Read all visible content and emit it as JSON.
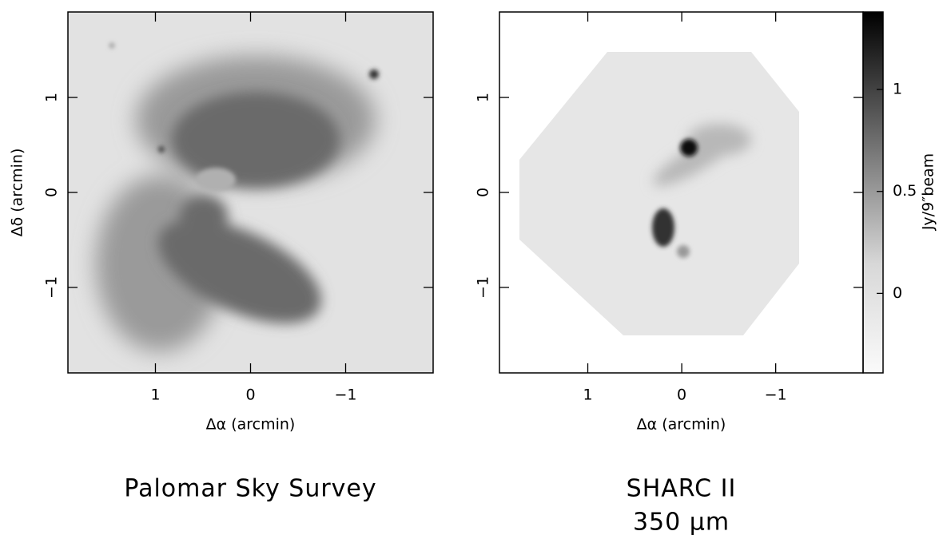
{
  "chart_data": [
    {
      "type": "image",
      "title_lines": [
        "Palomar Sky Survey"
      ],
      "xlabel": "Δα (arcmin)",
      "ylabel": "Δδ (arcmin)",
      "xlim": [
        1.92,
        -1.92
      ],
      "ylim": [
        -1.9,
        1.9
      ],
      "xticks": [
        1,
        0,
        {
          "value": -1,
          "label": "−1"
        }
      ],
      "yticks": [
        {
          "value": -1,
          "label": "−1"
        },
        0,
        1
      ]
    },
    {
      "type": "image",
      "title_lines": [
        "SHARC II",
        "350 μm"
      ],
      "xlabel": "Δα (arcmin)",
      "xlim": [
        1.94,
        -1.93
      ],
      "ylim": [
        -1.9,
        1.9
      ],
      "xticks": [
        1,
        0,
        {
          "value": -1,
          "label": "−1"
        }
      ],
      "yticks": [
        {
          "value": -1,
          "label": "−1"
        },
        0,
        1
      ],
      "colorbar": {
        "label": "Jy/9″beam",
        "lim": [
          -0.39,
          1.38
        ],
        "ticks": [
          0,
          0.5,
          1
        ]
      }
    }
  ]
}
